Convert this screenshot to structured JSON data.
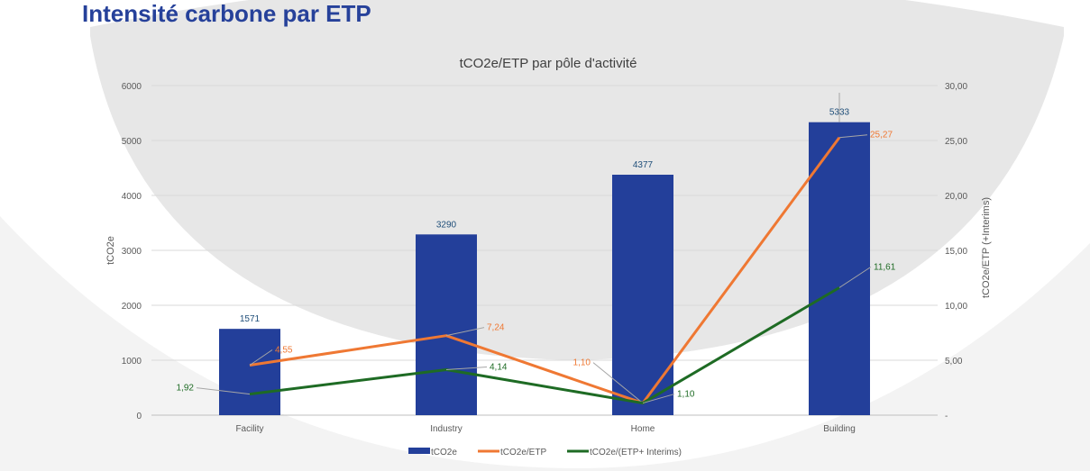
{
  "page": {
    "title": "Intensité carbone par ETP"
  },
  "colors": {
    "title": "#26419a",
    "bar": "#233f9a",
    "etp": "#ef7833",
    "etp_interims": "#1e6b24",
    "bar_label": "#1f4e79",
    "axis_text": "#595959"
  },
  "chart_data": {
    "type": "bar",
    "title": "tCO2e/ETP par pôle d'activité",
    "categories": [
      "Facility",
      "Industry",
      "Home",
      "Building"
    ],
    "ylabel": "tCO2e",
    "y2label": "tCO2e/ETP (+Interims)",
    "ylim": [
      0,
      6000
    ],
    "y2lim": [
      0,
      30
    ],
    "yticks": [
      "0",
      "1000",
      "2000",
      "3000",
      "4000",
      "5000",
      "6000"
    ],
    "y2ticks": [
      "-",
      "5,00",
      "10,00",
      "15,00",
      "20,00",
      "25,00",
      "30,00"
    ],
    "series": [
      {
        "name": "tCO2e",
        "type": "bar",
        "axis": "left",
        "values": [
          1571,
          3290,
          4377,
          5333
        ],
        "labels": [
          "1571",
          "3290",
          "4377",
          "5333"
        ]
      },
      {
        "name": "tCO2e/ETP",
        "type": "line",
        "axis": "right",
        "values": [
          4.55,
          7.24,
          1.1,
          25.27
        ],
        "labels": [
          "4,55",
          "7,24",
          "1,10",
          "25,27"
        ]
      },
      {
        "name": "tCO2e/(ETP+ Interims)",
        "type": "line",
        "axis": "right",
        "values": [
          1.92,
          4.14,
          1.1,
          11.61
        ],
        "labels": [
          "1,92",
          "4,14",
          "1,10",
          "11,61"
        ]
      }
    ],
    "legend": "bottom"
  }
}
